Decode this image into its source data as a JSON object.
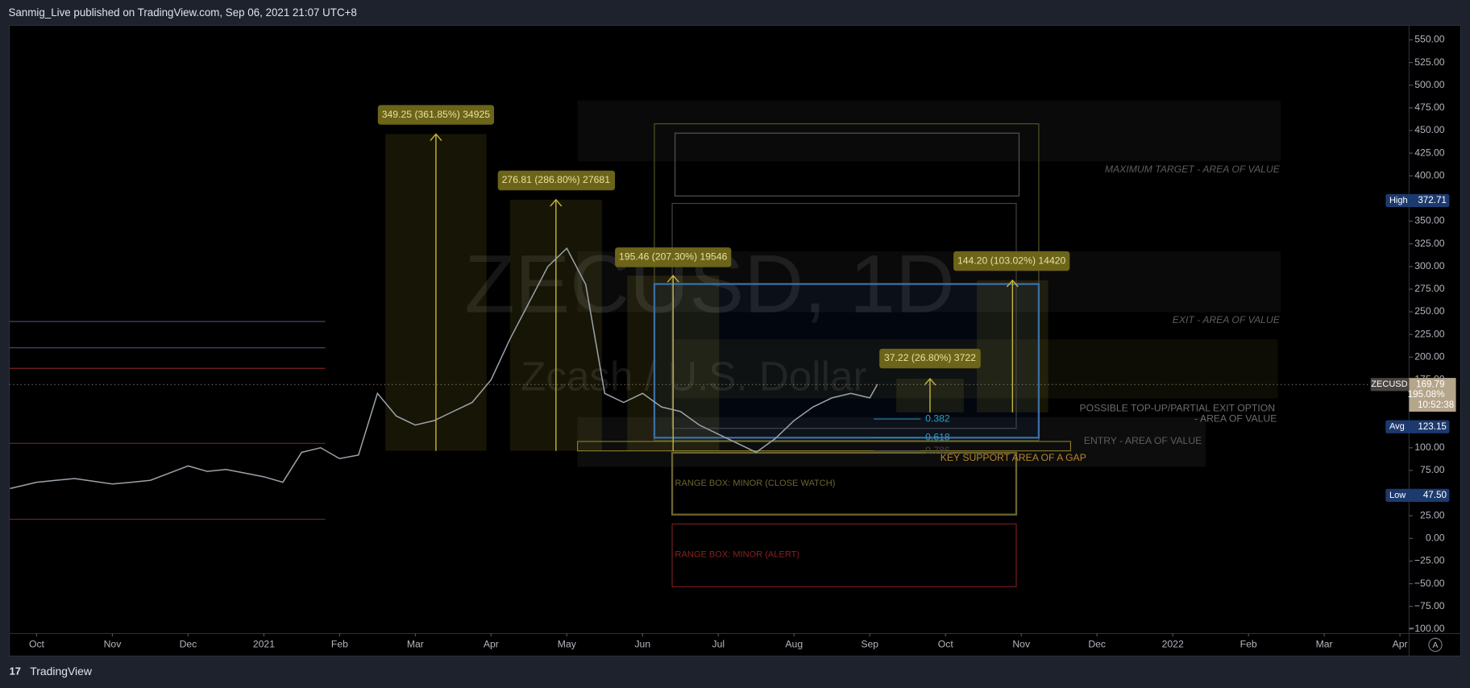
{
  "header": {
    "publisher": "Sanmig_Live published on TradingView.com, Sep 06, 2021 21:07 UTC+8",
    "brand": "TradingView"
  },
  "chart_data": {
    "type": "line",
    "color": "#9aa3ab",
    "watermark": {
      "symbol": "ZECUSD, 1D",
      "name": "Zcash / U.S. Dollar"
    },
    "x": [
      -0.35,
      0,
      0.25,
      0.5,
      0.75,
      1,
      1.25,
      1.5,
      1.75,
      2,
      2.25,
      2.5,
      2.75,
      3,
      3.25,
      3.5,
      3.75,
      4,
      4.25,
      4.5,
      4.75,
      5,
      5.25,
      5.5,
      5.75,
      6,
      6.25,
      6.5,
      6.75,
      7,
      7.25,
      7.5,
      7.75,
      8,
      8.25,
      8.5,
      8.75,
      9,
      9.25,
      9.5,
      9.75,
      10,
      10.25,
      10.5,
      10.75,
      11,
      11.1
    ],
    "values": [
      55,
      62,
      64,
      66,
      63,
      60,
      62,
      64,
      72,
      80,
      74,
      76,
      72,
      68,
      62,
      95,
      100,
      88,
      92,
      160,
      135,
      125,
      130,
      140,
      150,
      175,
      220,
      260,
      300,
      320,
      280,
      160,
      150,
      160,
      145,
      140,
      125,
      115,
      105,
      95,
      110,
      130,
      145,
      155,
      160,
      155,
      170
    ],
    "xlim": [
      -0.36,
      18.12
    ],
    "ylim": [
      -105,
      566
    ],
    "xticks": [
      {
        "value": 0,
        "label": "Oct"
      },
      {
        "value": 1,
        "label": "Nov"
      },
      {
        "value": 2,
        "label": "Dec"
      },
      {
        "value": 3,
        "label": "2021"
      },
      {
        "value": 4,
        "label": "Feb"
      },
      {
        "value": 5,
        "label": "Mar"
      },
      {
        "value": 6,
        "label": "Apr"
      },
      {
        "value": 7,
        "label": "May"
      },
      {
        "value": 8,
        "label": "Jun"
      },
      {
        "value": 9,
        "label": "Jul"
      },
      {
        "value": 10,
        "label": "Aug"
      },
      {
        "value": 11,
        "label": "Sep"
      },
      {
        "value": 12,
        "label": "Oct"
      },
      {
        "value": 13,
        "label": "Nov"
      },
      {
        "value": 14,
        "label": "Dec"
      },
      {
        "value": 15,
        "label": "2022"
      },
      {
        "value": 16,
        "label": "Feb"
      },
      {
        "value": 17,
        "label": "Mar"
      },
      {
        "value": 18,
        "label": "Apr"
      }
    ],
    "yticks": [
      {
        "value": 550,
        "label": "550.00"
      },
      {
        "value": 525,
        "label": "525.00"
      },
      {
        "value": 500,
        "label": "500.00"
      },
      {
        "value": 475,
        "label": "475.00"
      },
      {
        "value": 450,
        "label": "450.00"
      },
      {
        "value": 425,
        "label": "425.00"
      },
      {
        "value": 400,
        "label": "400.00"
      },
      {
        "value": 375,
        "label": "375.00"
      },
      {
        "value": 350,
        "label": "350.00"
      },
      {
        "value": 325,
        "label": "325.00"
      },
      {
        "value": 300,
        "label": "300.00"
      },
      {
        "value": 275,
        "label": "275.00"
      },
      {
        "value": 250,
        "label": "250.00"
      },
      {
        "value": 225,
        "label": "225.00"
      },
      {
        "value": 200,
        "label": "200.00"
      },
      {
        "value": 175,
        "label": "175.00"
      },
      {
        "value": 150,
        "label": "150.00"
      },
      {
        "value": 125,
        "label": "125.00"
      },
      {
        "value": 100,
        "label": "100.00"
      },
      {
        "value": 75,
        "label": "75.00"
      },
      {
        "value": 50,
        "label": "50.00"
      },
      {
        "value": 25,
        "label": "25.00"
      },
      {
        "value": 0,
        "label": "0.00"
      },
      {
        "value": -25,
        "label": "−25.00"
      },
      {
        "value": -50,
        "label": "−50.00"
      },
      {
        "value": -75,
        "label": "−75.00"
      },
      {
        "value": -100,
        "label": "−100.00"
      }
    ],
    "grid": false,
    "markers": [
      {
        "label": "High",
        "value": 372.71,
        "value_label": "372.71"
      },
      {
        "label": "Avg",
        "value": 123.15,
        "value_label": "123.15"
      },
      {
        "label": "Low",
        "value": 47.5,
        "value_label": "47.50"
      }
    ],
    "last": {
      "symbol": "ZECUSD",
      "value": 169.79,
      "value_label": "169.79",
      "change": "195.08%",
      "countdown": "10:52:38"
    },
    "auto_button": "A",
    "measures": [
      "349.25 (361.85%) 34925",
      "276.81 (286.80%) 27681",
      "195.46 (207.30%) 19546",
      "37.22 (26.80%) 3722",
      "144.20 (103.02%) 14420"
    ],
    "zones": [
      "MAXIMUM TARGET - AREA OF VALUE",
      "EXIT - AREA OF VALUE",
      "POSSIBLE TOP-UP/PARTIAL EXIT OPTION",
      "- AREA OF VALUE",
      "ENTRY - AREA OF VALUE",
      "KEY SUPPORT AREA OF A GAP",
      "RANGE BOX: MINOR  (CLOSE WATCH)",
      "RANGE BOX: MINOR (ALERT)"
    ],
    "fib": [
      "0.382",
      "0.618",
      "0.786"
    ]
  }
}
